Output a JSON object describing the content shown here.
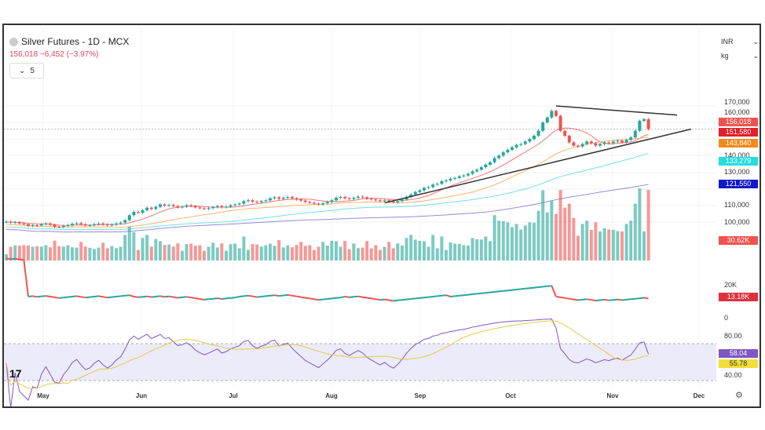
{
  "header": {
    "title": "Silver Futures - 1D - MCX",
    "price": "156,018",
    "change": "−6,452 (−3.97%)",
    "indicator_toggle": "5",
    "currency": "INR",
    "unit": "kg"
  },
  "colors": {
    "up": "#26a69a",
    "down": "#ef5350",
    "ma1": "#ef5350",
    "ma2": "#f7a14a",
    "ma3": "#4fd8d8",
    "ma4": "#7e6bd6",
    "rsi": "#7e57c2",
    "rsi_ma": "#e6c84a"
  },
  "chart_data": {
    "type": "candlestick",
    "title": "Silver Futures - 1D - MCX",
    "x_tick_labels": [
      "May",
      "Jun",
      "Jul",
      "Aug",
      "Sep",
      "Oct",
      "Nov",
      "Dec"
    ],
    "y_tick_labels": [
      "170,000",
      "160,000",
      "140,000",
      "130,000",
      "110,000",
      "100,000"
    ],
    "ylim": [
      95000,
      175000
    ],
    "closes": [
      100000,
      99500,
      99800,
      99000,
      98500,
      97500,
      98000,
      97800,
      98500,
      99000,
      98200,
      97000,
      96800,
      97500,
      98000,
      98800,
      99200,
      98500,
      97800,
      98000,
      98600,
      99000,
      98400,
      97900,
      98300,
      99000,
      99500,
      101000,
      104000,
      106000,
      105500,
      107000,
      108500,
      107800,
      109000,
      110500,
      109800,
      110200,
      109500,
      108800,
      109200,
      110000,
      109500,
      108700,
      108200,
      107800,
      108300,
      108900,
      109500,
      108800,
      109200,
      110000,
      110500,
      111000,
      112500,
      113000,
      112200,
      111800,
      112500,
      113000,
      114200,
      114800,
      113900,
      114500,
      115000,
      114200,
      113500,
      112800,
      112000,
      111500,
      111000,
      110500,
      111200,
      112000,
      113000,
      114500,
      115000,
      114200,
      113800,
      114500,
      115200,
      114800,
      114000,
      113500,
      113000,
      112500,
      113000,
      112300,
      111800,
      112500,
      113500,
      115000,
      116500,
      118000,
      119000,
      120500,
      121000,
      122500,
      123000,
      124500,
      125000,
      126000,
      126500,
      127500,
      128000,
      129000,
      130500,
      131500,
      133000,
      134500,
      136000,
      138500,
      140000,
      142000,
      143500,
      145000,
      146500,
      147000,
      148500,
      150000,
      152000,
      155000,
      160000,
      163000,
      167000,
      164000,
      155000,
      152000,
      148000,
      146000,
      145500,
      147000,
      148500,
      147500,
      146000,
      147000,
      148000,
      147500,
      148500,
      149000,
      148000,
      149500,
      151000,
      155000,
      161000,
      162000,
      156018
    ],
    "price_labels": [
      {
        "value": "156,018",
        "color": "#ef5350"
      },
      {
        "value": "151,580",
        "color": "#e0202a"
      },
      {
        "value": "143,840",
        "color": "#f28a1b"
      },
      {
        "value": "133,279",
        "color": "#22dede"
      },
      {
        "value": "121,550",
        "color": "#1018c8"
      }
    ],
    "trendlines": [
      {
        "from": [
          "Oct 14",
          170000
        ],
        "to": [
          "Nov 25",
          164500
        ]
      },
      {
        "from": [
          "Aug 20",
          111500
        ],
        "to": [
          "Nov 28",
          156000
        ]
      }
    ],
    "volume": {
      "last": "30.62K"
    },
    "indicator": {
      "tick": "20K",
      "zero": "0",
      "last": "13.18K"
    },
    "rsi": {
      "ticks": [
        "80.00",
        "40.00"
      ],
      "value": "58.04",
      "ma_value": "55.78"
    }
  }
}
